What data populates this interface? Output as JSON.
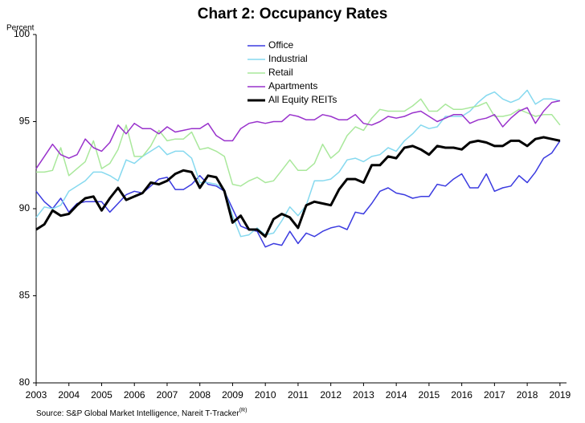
{
  "chart_data": {
    "type": "line",
    "title": "Chart 2: Occupancy Rates",
    "ylabel": "Percent",
    "source": "Source: S&P Global Market Intelligence, Nareit T-Tracker",
    "source_superscript": "(R)",
    "x": [
      2003,
      2003.25,
      2003.5,
      2003.75,
      2004,
      2004.25,
      2004.5,
      2004.75,
      2005,
      2005.25,
      2005.5,
      2005.75,
      2006,
      2006.25,
      2006.5,
      2006.75,
      2007,
      2007.25,
      2007.5,
      2007.75,
      2008,
      2008.25,
      2008.5,
      2008.75,
      2009,
      2009.25,
      2009.5,
      2009.75,
      2010,
      2010.25,
      2010.5,
      2010.75,
      2011,
      2011.25,
      2011.5,
      2011.75,
      2012,
      2012.25,
      2012.5,
      2012.75,
      2013,
      2013.25,
      2013.5,
      2013.75,
      2014,
      2014.25,
      2014.5,
      2014.75,
      2015,
      2015.25,
      2015.5,
      2015.75,
      2016,
      2016.25,
      2016.5,
      2016.75,
      2017,
      2017.25,
      2017.5,
      2017.75,
      2018,
      2018.25,
      2018.5,
      2018.75,
      2019
    ],
    "xlim": [
      2003,
      2019.2
    ],
    "xticks": [
      2003,
      2004,
      2005,
      2006,
      2007,
      2008,
      2009,
      2010,
      2011,
      2012,
      2013,
      2014,
      2015,
      2016,
      2017,
      2018,
      2019
    ],
    "ylim": [
      80,
      100
    ],
    "yticks": [
      80,
      85,
      90,
      95,
      100
    ],
    "series": [
      {
        "name": "Office",
        "color": "#3b3be0",
        "width": 1.5,
        "values": [
          91.0,
          90.4,
          90.0,
          90.6,
          89.8,
          90.3,
          90.4,
          90.4,
          90.4,
          89.8,
          90.3,
          90.8,
          91.0,
          90.9,
          91.3,
          91.7,
          91.8,
          91.1,
          91.1,
          91.4,
          91.9,
          91.4,
          91.3,
          91.0,
          90.0,
          89.0,
          88.8,
          88.7,
          87.8,
          88.0,
          87.9,
          88.7,
          88.0,
          88.6,
          88.4,
          88.7,
          88.9,
          89.0,
          88.8,
          89.8,
          89.7,
          90.3,
          91.0,
          91.2,
          90.9,
          90.8,
          90.6,
          90.7,
          90.7,
          91.4,
          91.3,
          91.7,
          92.0,
          91.2,
          91.2,
          92.0,
          91.0,
          91.2,
          91.3,
          91.9,
          91.5,
          92.1,
          92.9,
          93.2,
          93.9
        ]
      },
      {
        "name": "Industrial",
        "color": "#86d9ef",
        "width": 1.5,
        "values": [
          89.5,
          90.1,
          90.0,
          90.2,
          91.0,
          91.3,
          91.6,
          92.1,
          92.1,
          91.9,
          91.6,
          92.8,
          92.6,
          93.0,
          93.3,
          93.6,
          93.1,
          93.3,
          93.3,
          92.9,
          91.5,
          91.5,
          91.4,
          91.1,
          89.6,
          88.4,
          88.5,
          88.9,
          88.5,
          88.6,
          89.3,
          90.1,
          89.6,
          90.2,
          91.6,
          91.6,
          91.7,
          92.1,
          92.8,
          92.9,
          92.7,
          93.0,
          93.1,
          93.5,
          93.3,
          93.9,
          94.3,
          94.8,
          94.6,
          94.7,
          95.3,
          95.3,
          95.3,
          95.6,
          96.1,
          96.5,
          96.7,
          96.3,
          96.1,
          96.3,
          96.8,
          96.0,
          96.3,
          96.3,
          96.2
        ]
      },
      {
        "name": "Retail",
        "color": "#a9e89b",
        "width": 1.5,
        "values": [
          92.1,
          92.1,
          92.2,
          93.5,
          91.9,
          92.3,
          92.7,
          93.9,
          92.3,
          92.6,
          93.4,
          94.8,
          93.0,
          93.0,
          93.6,
          94.5,
          93.9,
          94.0,
          94.0,
          94.4,
          93.4,
          93.5,
          93.3,
          93.0,
          91.4,
          91.3,
          91.6,
          91.8,
          91.5,
          91.6,
          92.2,
          92.8,
          92.2,
          92.2,
          92.6,
          93.7,
          92.9,
          93.3,
          94.2,
          94.7,
          94.5,
          95.2,
          95.7,
          95.6,
          95.6,
          95.6,
          95.9,
          96.3,
          95.6,
          95.6,
          96.0,
          95.7,
          95.7,
          95.8,
          95.9,
          96.1,
          95.3,
          95.3,
          95.4,
          95.7,
          95.5,
          95.3,
          95.4,
          95.4,
          94.8
        ]
      },
      {
        "name": "Apartments",
        "color": "#9932cc",
        "width": 1.5,
        "values": [
          92.3,
          93.0,
          93.7,
          93.1,
          92.9,
          93.1,
          94.0,
          93.5,
          93.3,
          93.8,
          94.8,
          94.3,
          94.9,
          94.6,
          94.6,
          94.3,
          94.7,
          94.4,
          94.5,
          94.6,
          94.6,
          94.9,
          94.2,
          93.9,
          93.9,
          94.6,
          94.9,
          95.0,
          94.9,
          95.0,
          95.0,
          95.4,
          95.3,
          95.1,
          95.1,
          95.4,
          95.3,
          95.1,
          95.1,
          95.4,
          94.9,
          94.8,
          95.0,
          95.3,
          95.2,
          95.3,
          95.5,
          95.6,
          95.3,
          95.0,
          95.2,
          95.4,
          95.4,
          94.9,
          95.1,
          95.2,
          95.4,
          94.7,
          95.2,
          95.6,
          95.8,
          94.9,
          95.6,
          96.1,
          96.2
        ]
      },
      {
        "name": "All Equity REITs",
        "color": "#000000",
        "width": 3,
        "values": [
          88.8,
          89.1,
          89.9,
          89.6,
          89.7,
          90.2,
          90.6,
          90.7,
          89.9,
          90.6,
          91.2,
          90.5,
          90.7,
          90.9,
          91.5,
          91.4,
          91.6,
          92.0,
          92.2,
          92.1,
          91.2,
          91.9,
          91.8,
          91.0,
          89.2,
          89.6,
          88.8,
          88.8,
          88.4,
          89.4,
          89.7,
          89.5,
          88.9,
          90.2,
          90.4,
          90.3,
          90.2,
          91.1,
          91.7,
          91.7,
          91.5,
          92.5,
          92.5,
          93.0,
          92.9,
          93.5,
          93.6,
          93.4,
          93.1,
          93.6,
          93.5,
          93.5,
          93.4,
          93.8,
          93.9,
          93.8,
          93.6,
          93.6,
          93.9,
          93.9,
          93.6,
          94.0,
          94.1,
          94.0,
          93.9
        ]
      }
    ]
  }
}
